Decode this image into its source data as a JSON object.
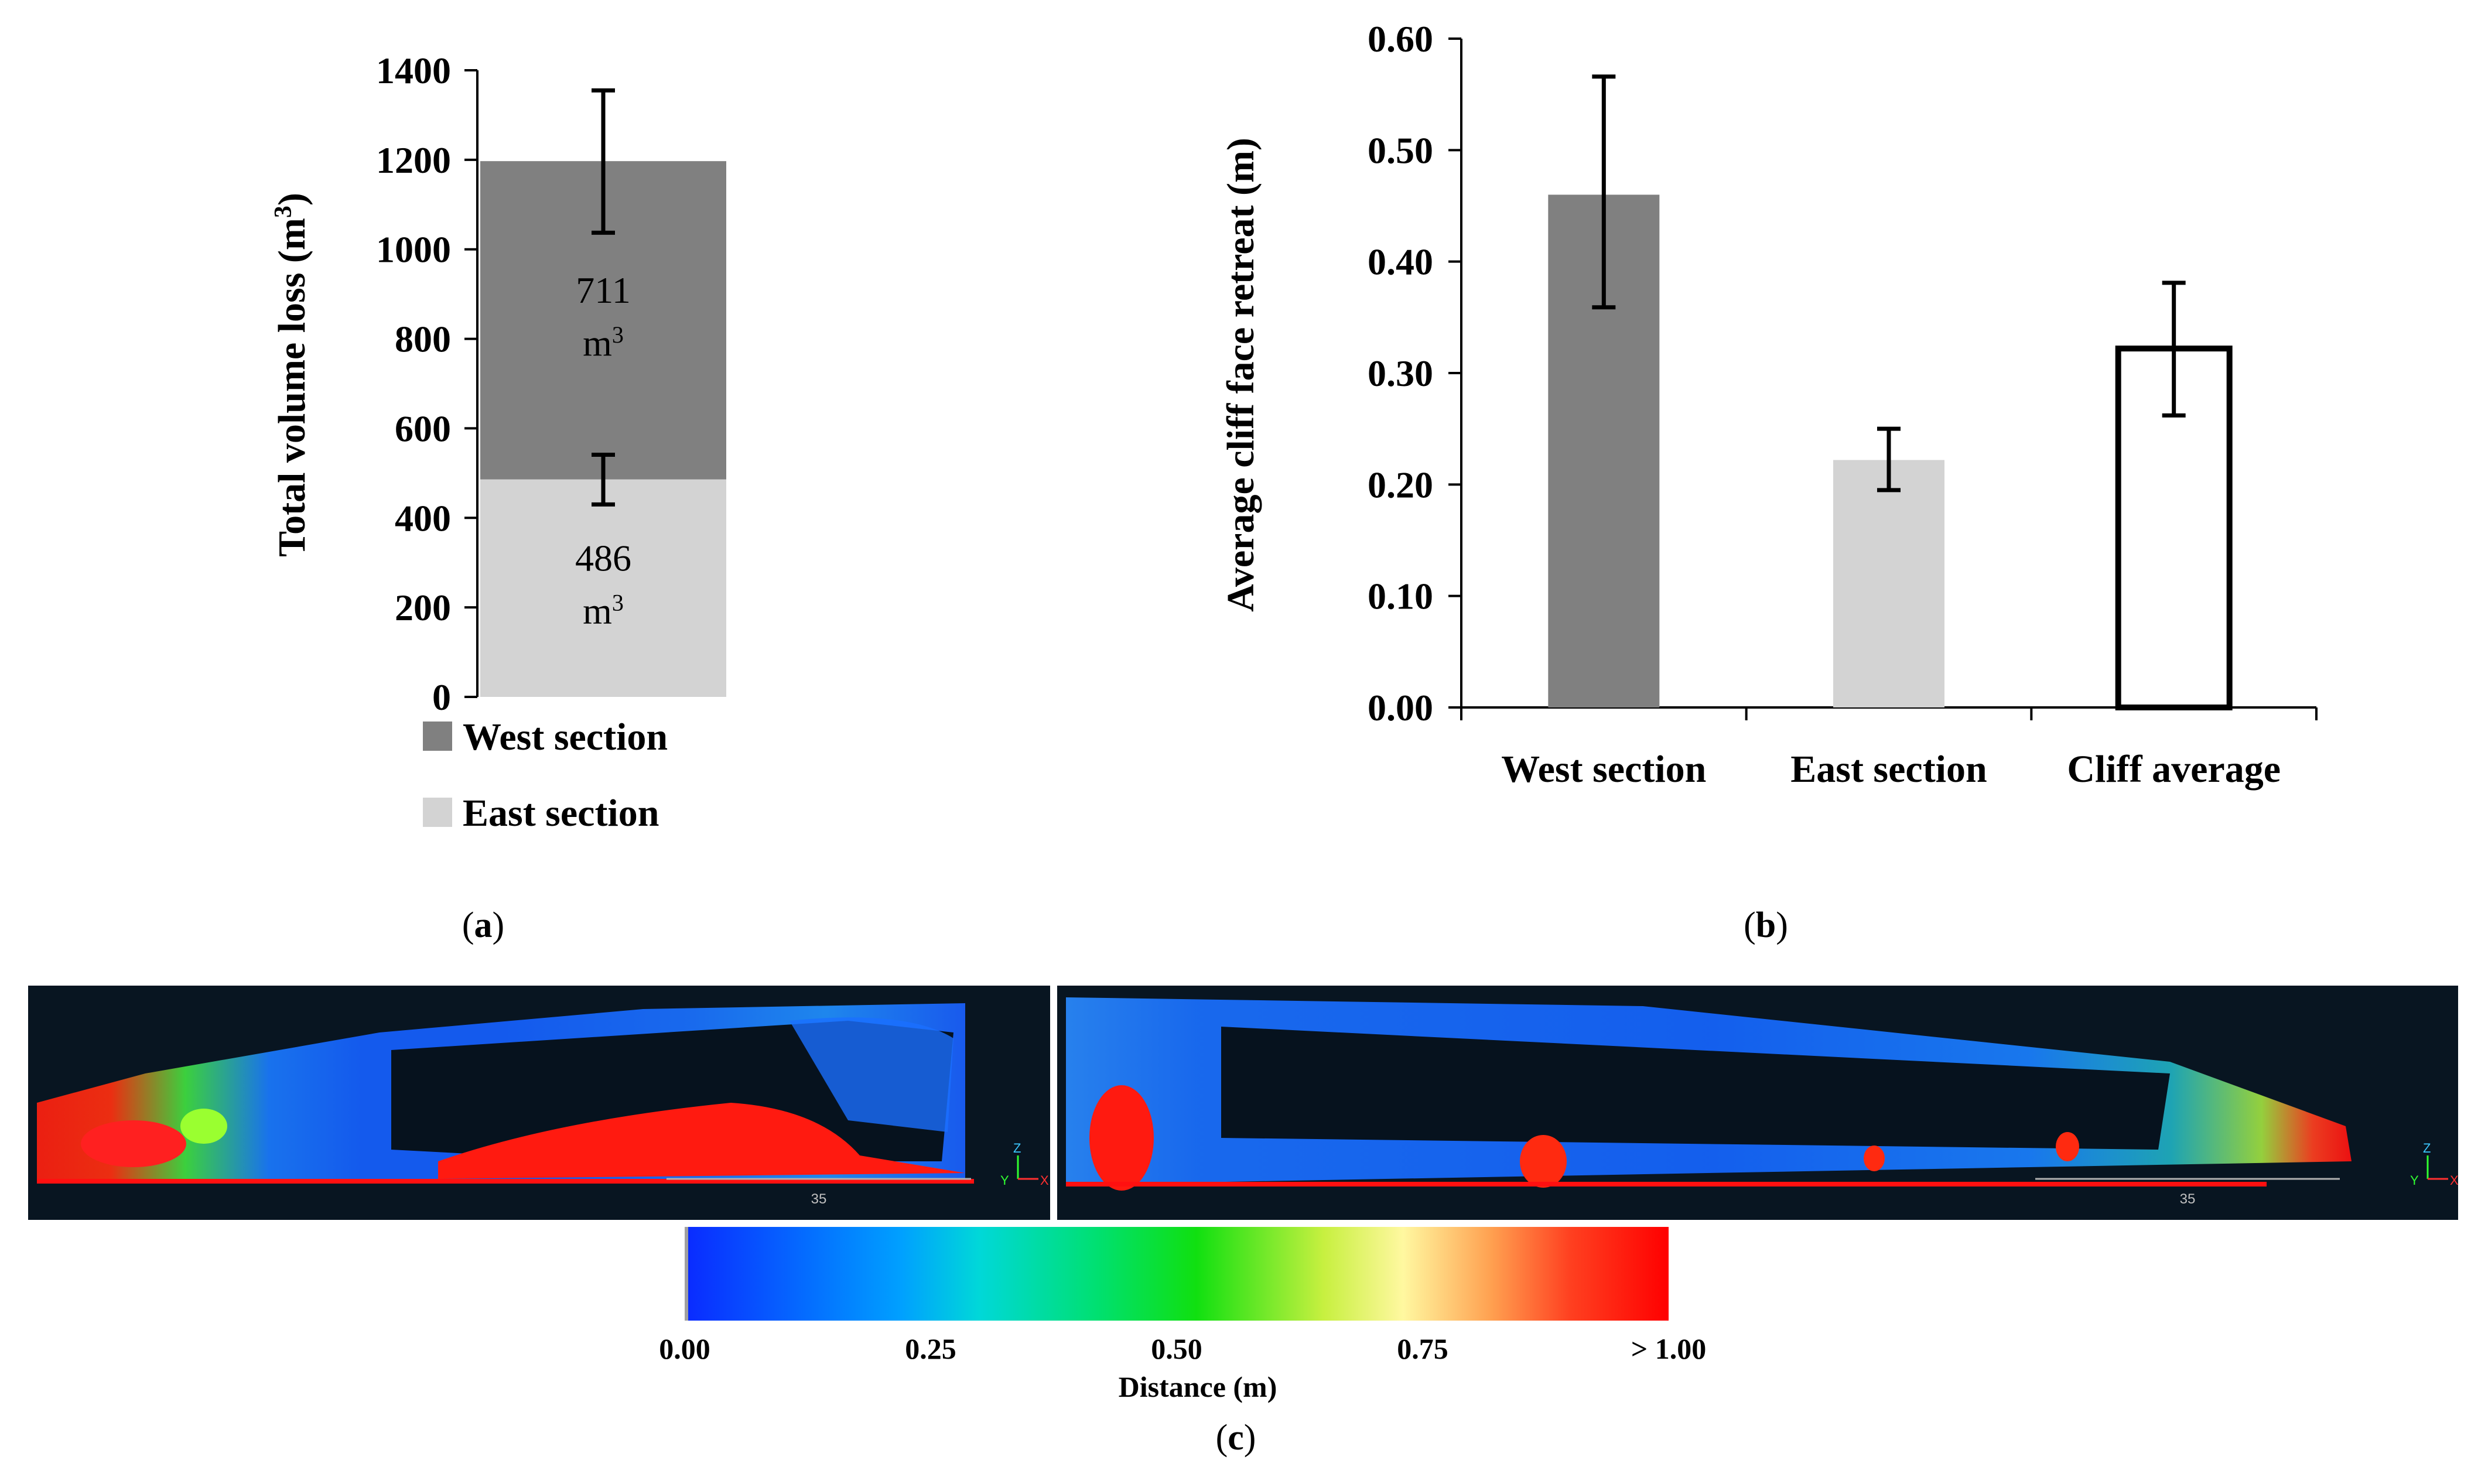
{
  "panel_a": {
    "caption": "a",
    "chart_data": {
      "type": "bar",
      "stacked": true,
      "ylabel_main": "Total volume loss (m",
      "ylabel_sup": "3",
      "ylabel_end": ")",
      "ylim": [
        0,
        1400
      ],
      "yticks": [
        0,
        200,
        400,
        600,
        800,
        1000,
        1200,
        1400
      ],
      "series": [
        {
          "name": "East section",
          "value": 486,
          "label_main": "486",
          "label_unit": "m",
          "label_sup": "3",
          "error_low": 430,
          "error_high": 541,
          "color": "#d3d3d3"
        },
        {
          "name": "West section",
          "value": 711,
          "label_main": "711",
          "label_unit": "m",
          "label_sup": "3",
          "error_low": 1037,
          "error_high": 1355,
          "color": "#808080"
        }
      ],
      "legend": [
        {
          "label": "West section",
          "color": "#808080"
        },
        {
          "label": "East section",
          "color": "#d3d3d3"
        }
      ]
    }
  },
  "panel_b": {
    "caption": "b",
    "chart_data": {
      "type": "bar",
      "ylabel": "Average cliff face retreat (m)",
      "ylim": [
        0,
        0.6
      ],
      "yticks": [
        "0.00",
        "0.10",
        "0.20",
        "0.30",
        "0.40",
        "0.50",
        "0.60"
      ],
      "categories": [
        "West section",
        "East section",
        "Cliff average"
      ],
      "values": [
        0.46,
        0.222,
        0.322
      ],
      "errors_low": [
        0.359,
        0.195,
        0.262
      ],
      "errors_high": [
        0.566,
        0.25,
        0.381
      ],
      "colors": [
        "#808080",
        "#d3d3d3",
        "#ffffff"
      ]
    }
  },
  "panel_c": {
    "caption": "c",
    "left_scale_label": "35",
    "right_scale_label": "35",
    "axis_labels": {
      "z": "Z",
      "y": "Y",
      "x": "X"
    },
    "colorbar": {
      "title": "Distance (m)",
      "ticks": [
        "0.00",
        "0.25",
        "0.50",
        "0.75",
        "> 1.00"
      ],
      "colors": [
        "#1a1aff",
        "#00c8ff",
        "#00e070",
        "#1ee000",
        "#e8f060",
        "#ffe08a",
        "#ff6020",
        "#ff0000"
      ]
    }
  }
}
